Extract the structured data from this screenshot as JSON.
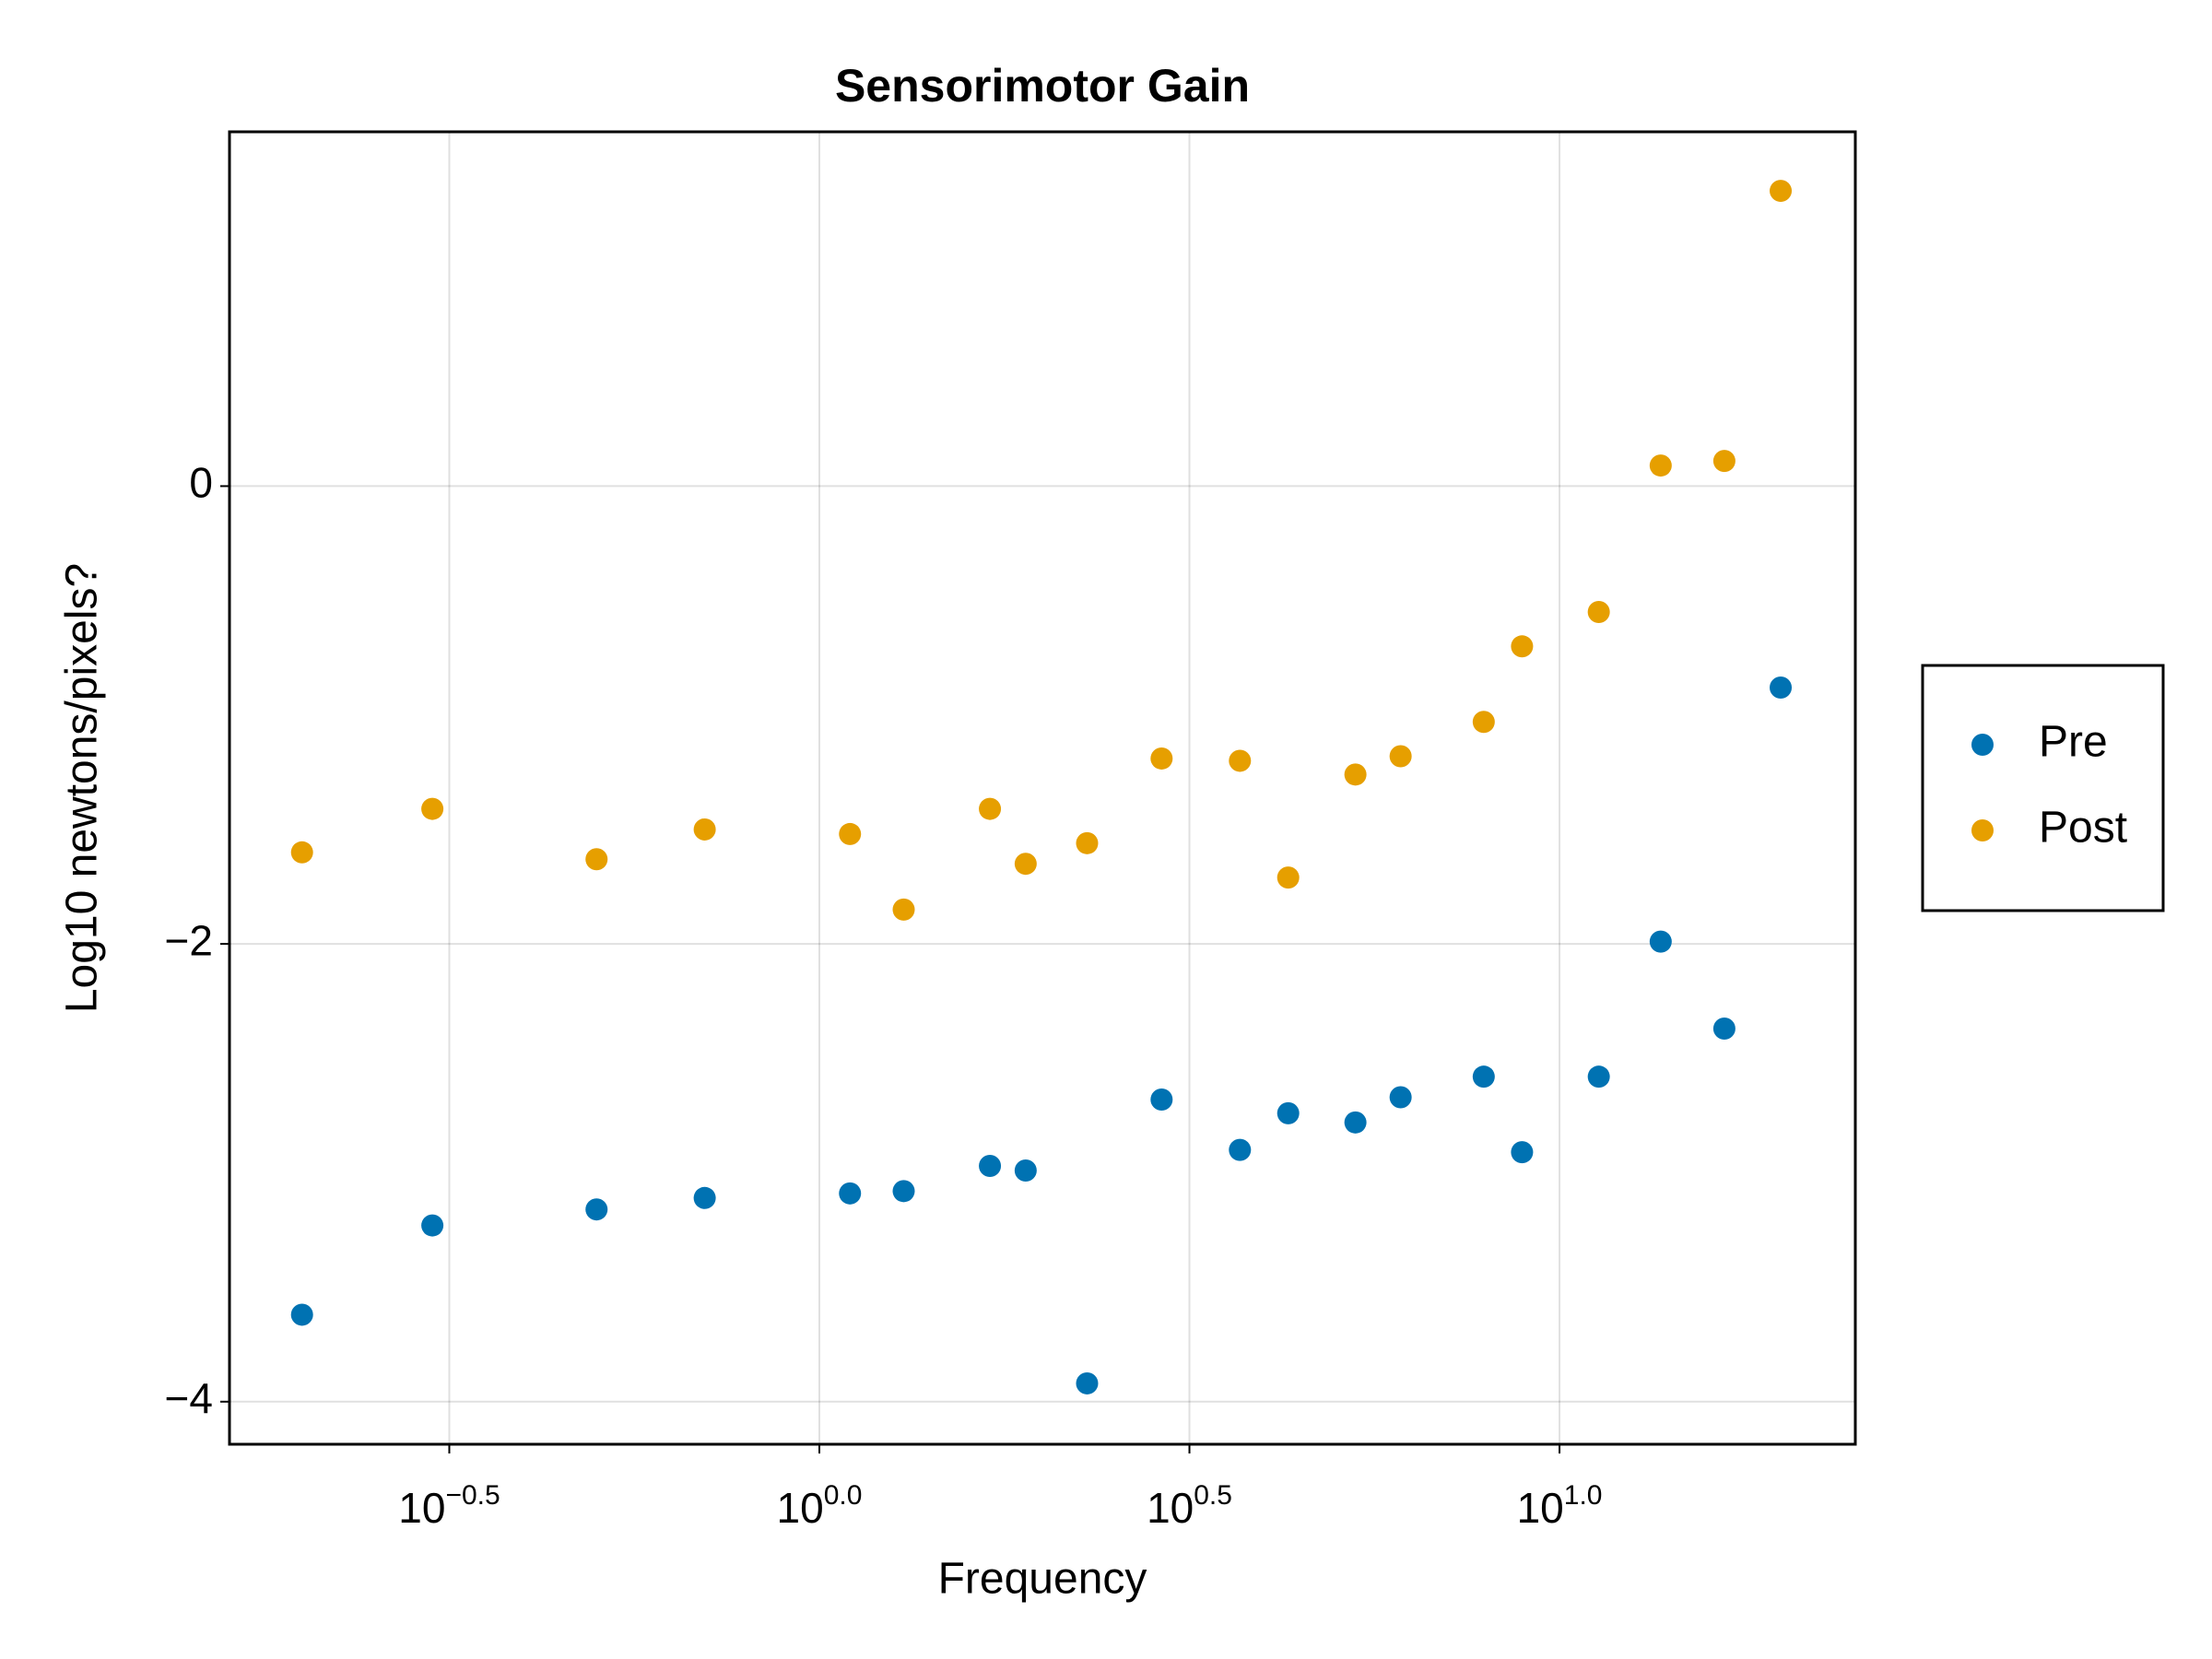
{
  "chart_data": {
    "type": "scatter",
    "title": "Sensorimotor Gain",
    "x_label": "Frequency",
    "y_label": "Log10 newtons/pixels?",
    "x": [
      0.2,
      0.3,
      0.5,
      0.7,
      1.1,
      1.3,
      1.7,
      1.9,
      2.3,
      2.9,
      3.7,
      4.3,
      5.3,
      6.1,
      7.9,
      8.9,
      11.3,
      13.7,
      16.7,
      19.9
    ],
    "series": [
      {
        "name": "Pre",
        "color": "#0072b2",
        "values": [
          -3.62,
          -3.23,
          -3.16,
          -3.11,
          -3.09,
          -3.08,
          -2.97,
          -2.99,
          -3.92,
          -2.68,
          -2.9,
          -2.74,
          -2.78,
          -2.67,
          -2.58,
          -2.91,
          -2.58,
          -1.99,
          -2.37,
          -0.88
        ]
      },
      {
        "name": "Post",
        "color": "#e69f00",
        "values": [
          -1.6,
          -1.41,
          -1.63,
          -1.5,
          -1.52,
          -1.85,
          -1.41,
          -1.65,
          -1.56,
          -1.19,
          -1.2,
          -1.71,
          -1.26,
          -1.18,
          -1.03,
          -0.7,
          -0.55,
          0.09,
          0.11,
          1.29
        ]
      }
    ],
    "xscale": "log",
    "xlim": [
      0.1596,
      25.1
    ],
    "xticks": [
      {
        "value": 0.31623,
        "label": "10",
        "sup": "−0.5"
      },
      {
        "value": 1,
        "label": "10",
        "sup": "0.0"
      },
      {
        "value": 3.1623,
        "label": "10",
        "sup": "0.5"
      },
      {
        "value": 10,
        "label": "10",
        "sup": "1.0"
      }
    ],
    "ylim": [
      -4.186,
      1.548
    ],
    "yticks": [
      {
        "value": -4,
        "label": "−4"
      },
      {
        "value": -2,
        "label": "−2"
      },
      {
        "value": 0,
        "label": "0"
      }
    ],
    "grid": true,
    "legend": "right"
  }
}
